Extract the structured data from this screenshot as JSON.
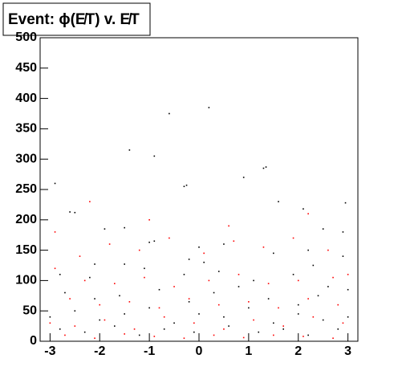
{
  "chart_data": {
    "type": "scatter",
    "title": "Event: ϕ(E̸T) v. E̸T",
    "xlim": [
      -3.2,
      3.2
    ],
    "ylim": [
      0,
      500
    ],
    "xticks": [
      -3,
      -2,
      -1,
      0,
      1,
      2,
      3
    ],
    "yticks": [
      0,
      50,
      100,
      150,
      200,
      250,
      300,
      350,
      400,
      450,
      500
    ],
    "series": [
      {
        "color": "#000000",
        "x": [
          -2.9,
          -2.6,
          -2.5,
          -1.4,
          -0.9,
          -0.3,
          -0.25,
          1.3,
          1.35,
          2.1,
          2.95,
          2.5,
          2.9,
          -1.0,
          -0.9,
          0.0,
          0.5,
          -1.5,
          -1.9,
          -1.5,
          -2.1,
          -0.2,
          0.1,
          1.5,
          2.3,
          2.2,
          2.9,
          -2.8,
          -2.2,
          -1.1,
          -0.3,
          0.4,
          1.1,
          1.9,
          2.6,
          -2.7,
          -2.1,
          -1.6,
          -0.8,
          -0.2,
          0.3,
          0.8,
          1.4,
          2.0,
          2.4,
          3.0,
          -3.0,
          -2.5,
          -2.0,
          -1.5,
          -1.0,
          -0.5,
          0.0,
          0.5,
          1.0,
          1.5,
          2.0,
          2.5,
          3.0,
          -2.8,
          -2.3,
          -1.7,
          -1.2,
          -0.7,
          -0.1,
          0.6,
          1.2,
          1.7,
          2.2,
          2.8,
          0.9,
          1.6,
          -0.6,
          0.2
        ],
        "values": [
          260,
          213,
          212,
          315,
          305,
          255,
          257,
          285,
          287,
          218,
          228,
          185,
          180,
          163,
          165,
          155,
          160,
          187,
          185,
          127,
          127,
          135,
          130,
          145,
          125,
          150,
          140,
          110,
          105,
          120,
          110,
          115,
          100,
          110,
          90,
          80,
          70,
          75,
          85,
          65,
          80,
          90,
          70,
          60,
          75,
          85,
          40,
          50,
          35,
          45,
          55,
          30,
          45,
          40,
          55,
          30,
          45,
          35,
          40,
          20,
          15,
          25,
          10,
          20,
          15,
          25,
          15,
          20,
          10,
          20,
          270,
          230,
          375,
          385
        ]
      },
      {
        "color": "#ff0000",
        "x": [
          -2.9,
          -2.4,
          -1.8,
          -1.2,
          -0.6,
          0.1,
          0.7,
          1.3,
          1.9,
          2.6,
          3.0,
          -2.9,
          -2.3,
          -1.7,
          -1.1,
          -0.5,
          0.2,
          0.8,
          1.4,
          2.0,
          2.7,
          -2.6,
          -2.0,
          -1.4,
          -0.8,
          -0.2,
          0.4,
          1.0,
          1.6,
          2.2,
          2.8,
          -3.0,
          -2.5,
          -1.9,
          -1.3,
          -0.7,
          -0.1,
          0.5,
          1.1,
          1.7,
          2.3,
          2.9,
          -2.7,
          -2.1,
          -1.5,
          -0.9,
          -0.3,
          0.3,
          0.9,
          1.5,
          2.1,
          2.7,
          -1.0,
          0.6,
          2.2,
          -2.2
        ],
        "values": [
          180,
          140,
          160,
          150,
          170,
          145,
          165,
          155,
          170,
          150,
          110,
          120,
          100,
          95,
          105,
          90,
          100,
          110,
          95,
          100,
          105,
          70,
          60,
          65,
          55,
          70,
          60,
          65,
          55,
          70,
          60,
          30,
          25,
          35,
          20,
          40,
          30,
          20,
          35,
          25,
          40,
          30,
          10,
          5,
          12,
          8,
          5,
          10,
          6,
          10,
          8,
          5,
          200,
          190,
          210,
          230
        ]
      }
    ]
  }
}
